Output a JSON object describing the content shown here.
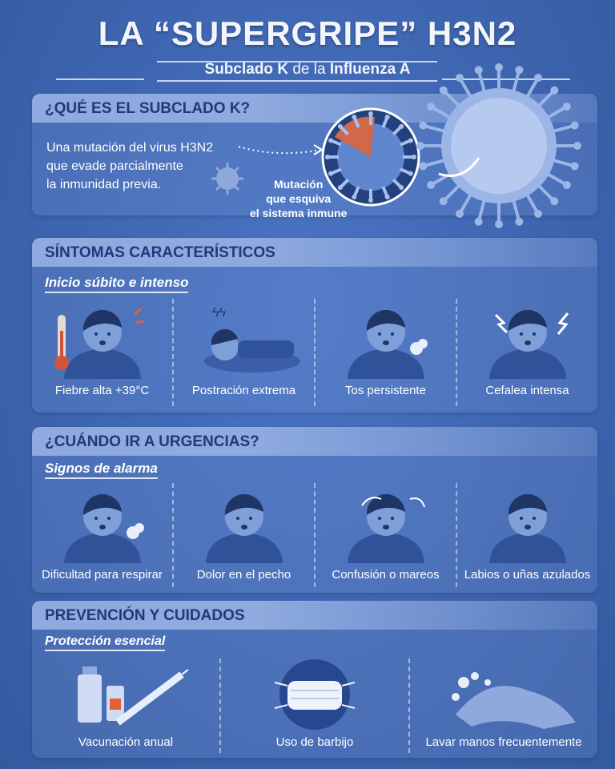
{
  "header": {
    "title": "LA “SUPERGRIPE” H3N2",
    "subtitle_bold1": "Subclado K",
    "subtitle_thin": " de la ",
    "subtitle_bold2": "Influenza A"
  },
  "what": {
    "heading": "¿QUÉ ES EL SUBCLADO K?",
    "desc": [
      "Una mutación del virus H3N2",
      "que evade parcialmente",
      "la inmunidad previa."
    ],
    "mutation_label": [
      "Mutación",
      "que esquiva",
      "el sistema inmune"
    ]
  },
  "symptoms": {
    "heading": "SÍNTOMAS CARACTERÍSTICOS",
    "subheading": "Inicio súbito e intenso",
    "items": [
      {
        "label": "Fiebre alta +39°C",
        "icon": "fever-thermometer-icon"
      },
      {
        "label": "Postración extrema",
        "icon": "lying-down-icon"
      },
      {
        "label": "Tos persistente",
        "icon": "cough-icon"
      },
      {
        "label": "Cefalea intensa",
        "icon": "headache-icon"
      }
    ]
  },
  "urgent": {
    "heading": "¿CUÁNDO IR A URGENCIAS?",
    "subheading": "Signos de alarma",
    "items": [
      {
        "label": "Dificultad para respirar",
        "icon": "breathing-difficulty-icon"
      },
      {
        "label": "Dolor en el pecho",
        "icon": "chest-pain-icon"
      },
      {
        "label": "Confusión o mareos",
        "icon": "dizziness-icon"
      },
      {
        "label": "Labios o uñas azulados",
        "icon": "blue-lips-icon"
      }
    ]
  },
  "prevention": {
    "heading": "PREVENCIÓN Y CUIDADOS",
    "subheading": "Protección esencial",
    "items": [
      {
        "label": "Vacunación anual",
        "icon": "vaccine-syringe-icon"
      },
      {
        "label": "Uso de barbijo",
        "icon": "face-mask-icon"
      },
      {
        "label": "Lavar manos frecuentemente",
        "icon": "hand-washing-icon"
      }
    ]
  },
  "colors": {
    "background": "#3a62b0",
    "header_strip": "#8eaadf",
    "heading_text": "#1f3a7a",
    "accent_fever": "#e0603a"
  }
}
